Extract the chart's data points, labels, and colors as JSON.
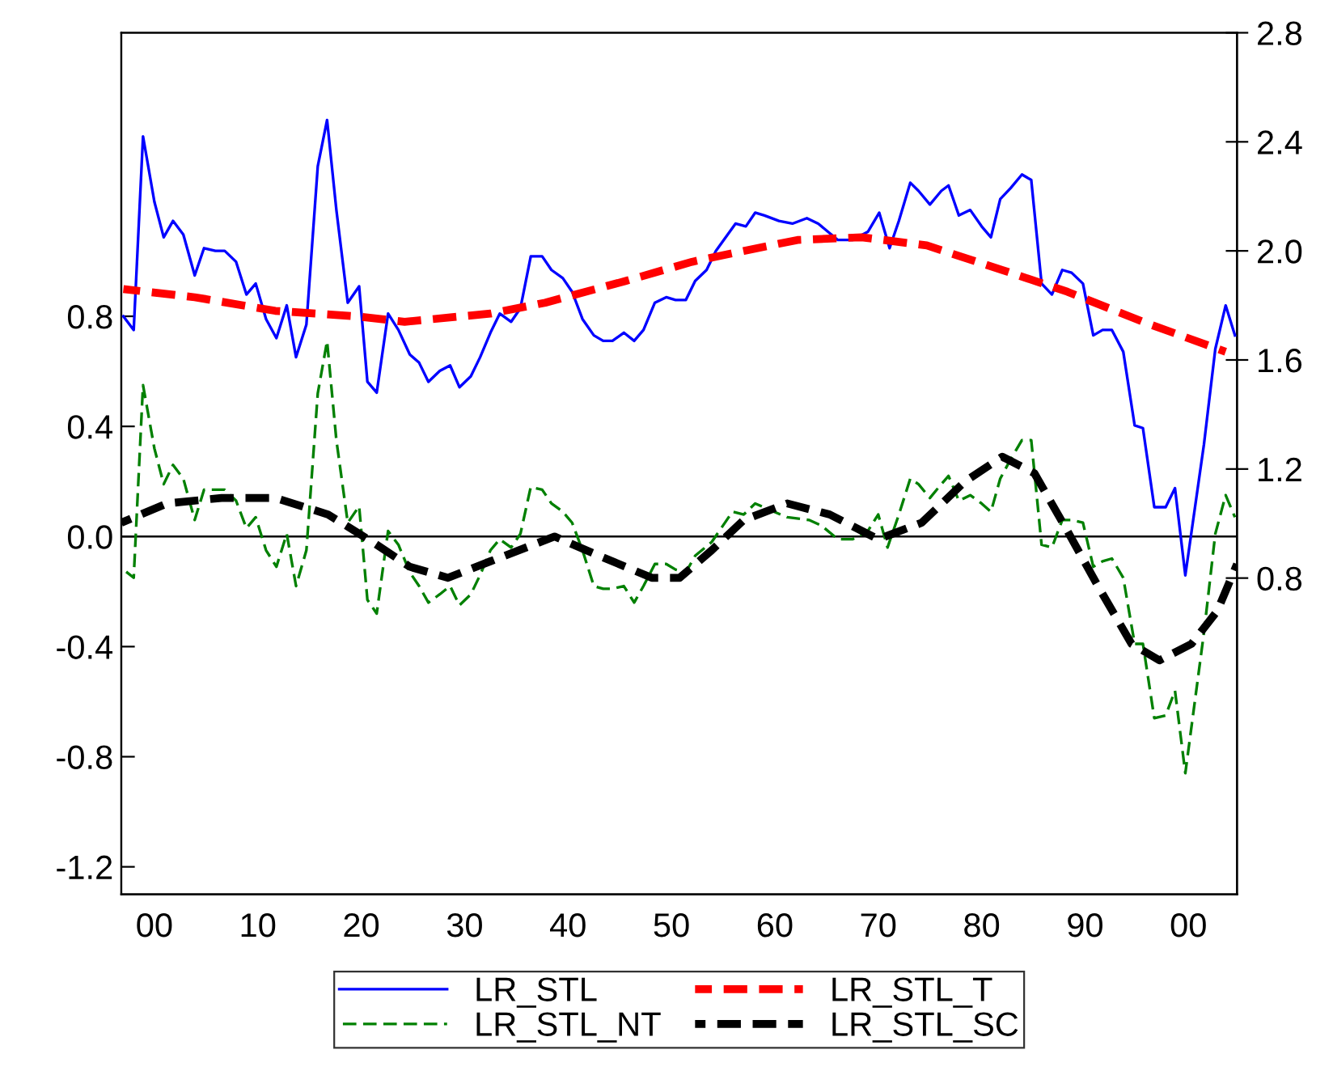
{
  "chart_data": {
    "type": "line",
    "xlim": [
      1896.8,
      2004.7
    ],
    "xticks": [
      {
        "value": 1900,
        "label": "00"
      },
      {
        "value": 1910,
        "label": "10"
      },
      {
        "value": 1920,
        "label": "20"
      },
      {
        "value": 1930,
        "label": "30"
      },
      {
        "value": 1940,
        "label": "40"
      },
      {
        "value": 1950,
        "label": "50"
      },
      {
        "value": 1960,
        "label": "60"
      },
      {
        "value": 1970,
        "label": "70"
      },
      {
        "value": 1980,
        "label": "80"
      },
      {
        "value": 1990,
        "label": "90"
      },
      {
        "value": 2000,
        "label": "00"
      }
    ],
    "ylim": [
      -1.3,
      1.83
    ],
    "yticks": [
      {
        "value": -1.2,
        "label": "-1.2"
      },
      {
        "value": -0.8,
        "label": "-0.8"
      },
      {
        "value": -0.4,
        "label": "-0.4"
      },
      {
        "value": 0,
        "label": "0.0"
      },
      {
        "value": 0.4,
        "label": "0.4"
      },
      {
        "value": 0.8,
        "label": "0.8"
      }
    ],
    "y2lim": [
      -0.36,
      2.8
    ],
    "y2ticks": [
      {
        "value": 0.8,
        "label": "0.8"
      },
      {
        "value": 1.2,
        "label": "1.2"
      },
      {
        "value": 1.6,
        "label": "1.6"
      },
      {
        "value": 2.0,
        "label": "2.0"
      },
      {
        "value": 2.4,
        "label": "2.4"
      },
      {
        "value": 2.8,
        "label": "2.8"
      }
    ],
    "ref_lines": [
      {
        "axis": "y",
        "value": 0,
        "color": "#000000"
      }
    ],
    "legend": "bottom",
    "grid": false,
    "series": [
      {
        "name": "LR_STL",
        "color": "#0000ff",
        "axis": "y2",
        "line_style": "solid",
        "x": [
          1897.0,
          1898.0,
          1898.9,
          1900.0,
          1900.9,
          1901.8,
          1902.8,
          1903.9,
          1904.8,
          1905.9,
          1906.8,
          1907.9,
          1908.9,
          1909.8,
          1910.8,
          1911.8,
          1912.8,
          1913.7,
          1914.7,
          1915.8,
          1916.7,
          1917.6,
          1918.7,
          1919.8,
          1920.6,
          1921.5,
          1922.6,
          1923.6,
          1924.7,
          1925.6,
          1926.5,
          1927.6,
          1928.6,
          1929.5,
          1930.6,
          1931.5,
          1932.5,
          1933.4,
          1934.5,
          1935.4,
          1936.4,
          1937.5,
          1938.4,
          1939.5,
          1940.4,
          1941.4,
          1942.5,
          1943.4,
          1944.3,
          1945.4,
          1946.4,
          1947.3,
          1948.4,
          1949.5,
          1950.4,
          1951.4,
          1952.3,
          1953.4,
          1954.3,
          1956.2,
          1957.2,
          1958.1,
          1959.0,
          1960.4,
          1961.7,
          1963.1,
          1964.2,
          1966.1,
          1967.5,
          1969.0,
          1970.1,
          1971.1,
          1972.0,
          1973.1,
          1973.9,
          1975.0,
          1976.1,
          1976.8,
          1977.8,
          1978.9,
          1980.0,
          1980.9,
          1981.8,
          1982.8,
          1983.9,
          1984.8,
          1985.8,
          1986.8,
          1987.8,
          1988.7,
          1989.8,
          1990.8,
          1991.7,
          1992.6,
          1993.7,
          1994.8,
          1995.6,
          1996.7,
          1997.8,
          1998.7,
          1999.7,
          2001.5,
          2002.6,
          2003.6,
          2004.5
        ],
        "values": [
          1.76,
          1.71,
          2.42,
          2.18,
          2.05,
          2.11,
          2.06,
          1.91,
          2.01,
          2.0,
          2.0,
          1.96,
          1.84,
          1.88,
          1.75,
          1.68,
          1.8,
          1.61,
          1.73,
          2.31,
          2.48,
          2.15,
          1.81,
          1.87,
          1.52,
          1.48,
          1.77,
          1.71,
          1.62,
          1.59,
          1.52,
          1.56,
          1.58,
          1.5,
          1.54,
          1.61,
          1.7,
          1.77,
          1.74,
          1.79,
          1.98,
          1.98,
          1.93,
          1.9,
          1.85,
          1.75,
          1.69,
          1.67,
          1.67,
          1.7,
          1.67,
          1.71,
          1.81,
          1.83,
          1.82,
          1.82,
          1.89,
          1.93,
          2.0,
          2.1,
          2.09,
          2.14,
          2.13,
          2.11,
          2.1,
          2.12,
          2.1,
          2.04,
          2.04,
          2.07,
          2.14,
          2.01,
          2.11,
          2.25,
          2.22,
          2.17,
          2.22,
          2.24,
          2.13,
          2.15,
          2.09,
          2.05,
          2.19,
          2.23,
          2.28,
          2.26,
          1.88,
          1.84,
          1.93,
          1.92,
          1.88,
          1.69,
          1.71,
          1.71,
          1.63,
          1.36,
          1.35,
          1.06,
          1.06,
          1.13,
          0.81,
          1.29,
          1.64,
          1.8,
          1.69
        ]
      },
      {
        "name": "LR_STL_NT",
        "color": "#008000",
        "line_style": "dashed",
        "x": [
          1897.0,
          1898.0,
          1898.9,
          1900.0,
          1900.9,
          1901.8,
          1902.8,
          1903.9,
          1904.8,
          1905.9,
          1906.8,
          1907.9,
          1908.9,
          1909.8,
          1910.8,
          1911.8,
          1912.8,
          1913.7,
          1914.7,
          1915.8,
          1916.7,
          1917.6,
          1918.7,
          1919.8,
          1920.6,
          1921.5,
          1922.6,
          1923.6,
          1924.7,
          1925.6,
          1926.5,
          1927.6,
          1928.6,
          1929.5,
          1930.6,
          1931.5,
          1932.5,
          1933.4,
          1934.5,
          1935.4,
          1936.4,
          1937.5,
          1938.4,
          1939.5,
          1940.4,
          1941.4,
          1942.5,
          1943.4,
          1944.3,
          1945.4,
          1946.4,
          1947.3,
          1948.4,
          1949.5,
          1950.4,
          1951.4,
          1952.3,
          1953.9,
          1955.9,
          1957.0,
          1958.1,
          1959.3,
          1961.2,
          1963.3,
          1964.5,
          1966.1,
          1967.5,
          1969.0,
          1970.0,
          1970.9,
          1972.0,
          1973.1,
          1973.9,
          1975.0,
          1976.1,
          1976.8,
          1977.8,
          1978.9,
          1980.0,
          1980.9,
          1981.8,
          1982.8,
          1983.9,
          1984.8,
          1985.8,
          1986.8,
          1987.8,
          1988.7,
          1989.8,
          1990.8,
          1991.7,
          1992.6,
          1993.7,
          1994.8,
          1995.6,
          1996.7,
          1997.8,
          1998.7,
          1999.7,
          2001.5,
          2002.6,
          2003.6,
          2004.5
        ],
        "values": [
          -0.12,
          -0.15,
          0.55,
          0.32,
          0.19,
          0.26,
          0.21,
          0.06,
          0.17,
          0.17,
          0.17,
          0.13,
          0.03,
          0.07,
          -0.05,
          -0.11,
          0.01,
          -0.18,
          -0.05,
          0.52,
          0.71,
          0.35,
          0.05,
          0.11,
          -0.23,
          -0.28,
          0.02,
          -0.03,
          -0.13,
          -0.18,
          -0.24,
          -0.21,
          -0.18,
          -0.25,
          -0.21,
          -0.14,
          -0.05,
          -0.01,
          -0.04,
          0.01,
          0.18,
          0.17,
          0.12,
          0.09,
          0.05,
          -0.05,
          -0.18,
          -0.19,
          -0.19,
          -0.18,
          -0.24,
          -0.18,
          -0.1,
          -0.1,
          -0.12,
          -0.13,
          -0.07,
          -0.02,
          0.09,
          0.08,
          0.12,
          0.1,
          0.07,
          0.06,
          0.04,
          -0.01,
          -0.01,
          0.02,
          0.08,
          -0.04,
          0.08,
          0.21,
          0.19,
          0.14,
          0.19,
          0.22,
          0.13,
          0.15,
          0.12,
          0.09,
          0.21,
          0.28,
          0.35,
          0.35,
          -0.03,
          -0.04,
          0.06,
          0.06,
          0.05,
          -0.11,
          -0.09,
          -0.08,
          -0.15,
          -0.39,
          -0.39,
          -0.66,
          -0.65,
          -0.56,
          -0.86,
          -0.35,
          0.01,
          0.15,
          0.07
        ]
      },
      {
        "name": "LR_STL_T",
        "color": "#ff0000",
        "axis": "y2",
        "line_style": "dashed",
        "x": [
          1897.0,
          1903.9,
          1911.7,
          1919.5,
          1924.2,
          1932.5,
          1937.8,
          1945.6,
          1952.0,
          1957.0,
          1962.2,
          1968.4,
          1974.7,
          1982.0,
          1988.3,
          1995.6,
          2003.6
        ],
        "values": [
          1.86,
          1.83,
          1.78,
          1.76,
          1.74,
          1.77,
          1.81,
          1.89,
          1.96,
          2.0,
          2.04,
          2.05,
          2.02,
          1.93,
          1.85,
          1.74,
          1.63
        ]
      },
      {
        "name": "LR_STL_SC",
        "color": "#000000",
        "line_style": "dashed",
        "x": [
          1896.8,
          1901.2,
          1906.5,
          1911.7,
          1916.8,
          1921.1,
          1924.7,
          1928.4,
          1932.5,
          1938.7,
          1943.0,
          1948.1,
          1950.8,
          1953.9,
          1957.0,
          1961.2,
          1965.3,
          1970.0,
          1974.2,
          1978.4,
          1982.0,
          1985.1,
          1988.3,
          1991.4,
          1994.5,
          1997.2,
          2000.3,
          2002.8,
          2004.7
        ],
        "values": [
          0.05,
          0.12,
          0.14,
          0.14,
          0.08,
          -0.02,
          -0.11,
          -0.15,
          -0.09,
          0.0,
          -0.07,
          -0.15,
          -0.15,
          -0.05,
          0.06,
          0.12,
          0.08,
          -0.01,
          0.05,
          0.2,
          0.29,
          0.23,
          0.02,
          -0.19,
          -0.39,
          -0.45,
          -0.39,
          -0.27,
          -0.1
        ]
      }
    ]
  }
}
